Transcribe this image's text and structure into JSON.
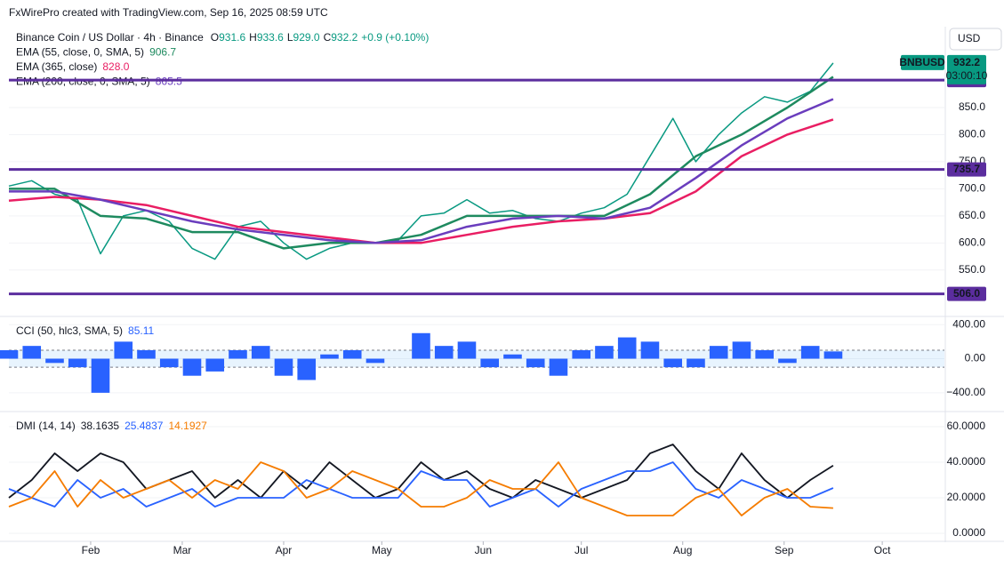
{
  "header": "FxWirePro created with TradingView.com, Sep 16, 2025 08:59 UTC",
  "currency": "USD",
  "chart_data": [
    {
      "type": "line",
      "title": "Binance Coin / US Dollar · 4h · Binance",
      "ohlc": [
        {
          "prefix": "O",
          "value": 931.6
        },
        {
          "prefix": "H",
          "value": 933.6
        },
        {
          "prefix": "L",
          "value": 929,
          "label": "929.0"
        },
        {
          "prefix": "C",
          "value": 932.2
        }
      ],
      "change": "+0.9 (+0.10%)",
      "countdown": "03:00:10",
      "xlim": [
        6,
        292
      ],
      "ylim": [
        466,
        996
      ],
      "yticks": [
        {
          "value": 550,
          "label": "550.0"
        },
        {
          "value": 600,
          "label": "600.0"
        },
        {
          "value": 650,
          "label": "650.0"
        },
        {
          "value": 700,
          "label": "700.0"
        },
        {
          "value": 750,
          "label": "750.0"
        },
        {
          "value": 800,
          "label": "800.0"
        },
        {
          "value": 850,
          "label": "850.0"
        }
      ],
      "levels": [
        {
          "value": 900.7
        },
        {
          "value": 735.7
        },
        {
          "value": 506,
          "label": "506.0"
        }
      ],
      "level_color": "#5b2d9e",
      "series": [
        {
          "name": "BNBUSD",
          "color": "#089981",
          "x": [
            6,
            13,
            20,
            27,
            34,
            41,
            48,
            55,
            62,
            69,
            76,
            83,
            90,
            97,
            104,
            111,
            118,
            125,
            132,
            139,
            146,
            153,
            160,
            167,
            174,
            181,
            188,
            195,
            202,
            209,
            216,
            223,
            230,
            237,
            244,
            251,
            258
          ],
          "values": [
            705,
            715,
            690,
            680,
            580,
            650,
            660,
            640,
            590,
            570,
            630,
            640,
            600,
            570,
            590,
            600,
            600,
            605,
            650,
            655,
            680,
            655,
            660,
            645,
            640,
            655,
            665,
            690,
            760,
            830,
            750,
            800,
            840,
            870,
            860,
            880,
            932.2
          ]
        },
        {
          "name": "EMA (55, close, 0, SMA, 5)",
          "color": "#1e8a5f",
          "x": [
            6,
            20,
            34,
            48,
            62,
            76,
            90,
            104,
            118,
            132,
            146,
            160,
            174,
            188,
            202,
            216,
            230,
            244,
            258
          ],
          "values": [
            700,
            700,
            650,
            645,
            620,
            620,
            590,
            600,
            600,
            615,
            650,
            650,
            650,
            650,
            690,
            760,
            800,
            850,
            906.7
          ]
        },
        {
          "name": "EMA (365, close)",
          "color": "#e91e63",
          "x": [
            6,
            20,
            34,
            48,
            62,
            76,
            90,
            104,
            118,
            132,
            146,
            160,
            174,
            188,
            202,
            216,
            230,
            244,
            258
          ],
          "values": [
            678,
            685,
            680,
            670,
            650,
            630,
            620,
            610,
            600,
            600,
            615,
            630,
            640,
            645,
            655,
            695,
            760,
            800,
            828
          ],
          "value_labels": [
            null,
            null,
            null,
            null,
            null,
            null,
            null,
            null,
            null,
            null,
            null,
            null,
            null,
            null,
            null,
            null,
            null,
            null,
            "828.0"
          ]
        },
        {
          "name": "EMA (200, close, 0, SMA, 5)",
          "color": "#6a3dbd",
          "x": [
            6,
            20,
            34,
            48,
            62,
            76,
            90,
            104,
            118,
            132,
            146,
            160,
            174,
            188,
            202,
            216,
            230,
            244,
            258
          ],
          "values": [
            695,
            695,
            680,
            660,
            640,
            625,
            615,
            605,
            600,
            605,
            630,
            645,
            650,
            645,
            665,
            720,
            780,
            830,
            865.5
          ]
        }
      ]
    },
    {
      "type": "bar",
      "title": "CCI (50, hlc3, SMA, 5)",
      "color": "#2962ff",
      "xlim": [
        6,
        292
      ],
      "ylim": [
        -610,
        475
      ],
      "yticks": [
        {
          "value": 400,
          "label": "400.00"
        },
        {
          "value": 0,
          "label": "0.00"
        },
        {
          "value": -400,
          "label": "−400.00"
        }
      ],
      "band": [
        -100,
        100
      ],
      "x": [
        6,
        13,
        20,
        27,
        34,
        41,
        48,
        55,
        62,
        69,
        76,
        83,
        90,
        97,
        104,
        111,
        118,
        125,
        132,
        139,
        146,
        153,
        160,
        167,
        174,
        181,
        188,
        195,
        202,
        209,
        216,
        223,
        230,
        237,
        244,
        251,
        258
      ],
      "values": [
        100,
        150,
        -50,
        -100,
        -400,
        200,
        100,
        -100,
        -200,
        -150,
        100,
        150,
        -200,
        -250,
        50,
        100,
        -50,
        0,
        300,
        150,
        200,
        -100,
        50,
        -100,
        -200,
        100,
        150,
        250,
        200,
        -100,
        -100,
        150,
        200,
        100,
        -50,
        150,
        85.11
      ]
    },
    {
      "type": "line",
      "title": "DMI (14, 14)",
      "xlim": [
        6,
        292
      ],
      "ylim": [
        -4,
        67.5
      ],
      "yticks": [
        {
          "value": 0,
          "label": "0.0000"
        },
        {
          "value": 20,
          "label": "20.0000"
        },
        {
          "value": 40,
          "label": "40.0000"
        },
        {
          "value": 60,
          "label": "60.0000"
        }
      ],
      "xticks": [
        {
          "value": 31,
          "label": "Feb"
        },
        {
          "value": 59,
          "label": "Mar"
        },
        {
          "value": 90,
          "label": "Apr"
        },
        {
          "value": 120,
          "label": "May"
        },
        {
          "value": 151,
          "label": "Jun"
        },
        {
          "value": 181,
          "label": "Jul"
        },
        {
          "value": 212,
          "label": "Aug"
        },
        {
          "value": 243,
          "label": "Sep"
        },
        {
          "value": 273,
          "label": "Oct"
        }
      ],
      "series": [
        {
          "color": "#131722",
          "x": [
            6,
            13,
            20,
            27,
            34,
            41,
            48,
            55,
            62,
            69,
            76,
            83,
            90,
            97,
            104,
            111,
            118,
            125,
            132,
            139,
            146,
            153,
            160,
            167,
            174,
            181,
            188,
            195,
            202,
            209,
            216,
            223,
            230,
            237,
            244,
            251,
            258
          ],
          "values": [
            20,
            30,
            45,
            35,
            45,
            40,
            25,
            30,
            35,
            20,
            30,
            20,
            35,
            25,
            40,
            30,
            20,
            25,
            40,
            30,
            35,
            25,
            20,
            30,
            25,
            20,
            25,
            30,
            45,
            50,
            35,
            25,
            45,
            30,
            20,
            30,
            38.1635
          ]
        },
        {
          "color": "#2962ff",
          "x": [
            6,
            13,
            20,
            27,
            34,
            41,
            48,
            55,
            62,
            69,
            76,
            83,
            90,
            97,
            104,
            111,
            118,
            125,
            132,
            139,
            146,
            153,
            160,
            167,
            174,
            181,
            188,
            195,
            202,
            209,
            216,
            223,
            230,
            237,
            244,
            251,
            258
          ],
          "values": [
            25,
            20,
            15,
            30,
            20,
            25,
            15,
            20,
            25,
            15,
            20,
            20,
            20,
            30,
            25,
            20,
            20,
            20,
            35,
            30,
            30,
            15,
            20,
            25,
            15,
            25,
            30,
            35,
            35,
            40,
            25,
            20,
            30,
            25,
            20,
            20,
            25.4837
          ]
        },
        {
          "color": "#f57c00",
          "x": [
            6,
            13,
            20,
            27,
            34,
            41,
            48,
            55,
            62,
            69,
            76,
            83,
            90,
            97,
            104,
            111,
            118,
            125,
            132,
            139,
            146,
            153,
            160,
            167,
            174,
            181,
            188,
            195,
            202,
            209,
            216,
            223,
            230,
            237,
            244,
            251,
            258
          ],
          "values": [
            15,
            20,
            35,
            15,
            30,
            20,
            25,
            30,
            20,
            30,
            25,
            40,
            35,
            20,
            25,
            35,
            30,
            25,
            15,
            15,
            20,
            30,
            25,
            25,
            40,
            20,
            15,
            10,
            10,
            10,
            20,
            25,
            10,
            20,
            25,
            15,
            14.1927
          ]
        }
      ]
    }
  ]
}
